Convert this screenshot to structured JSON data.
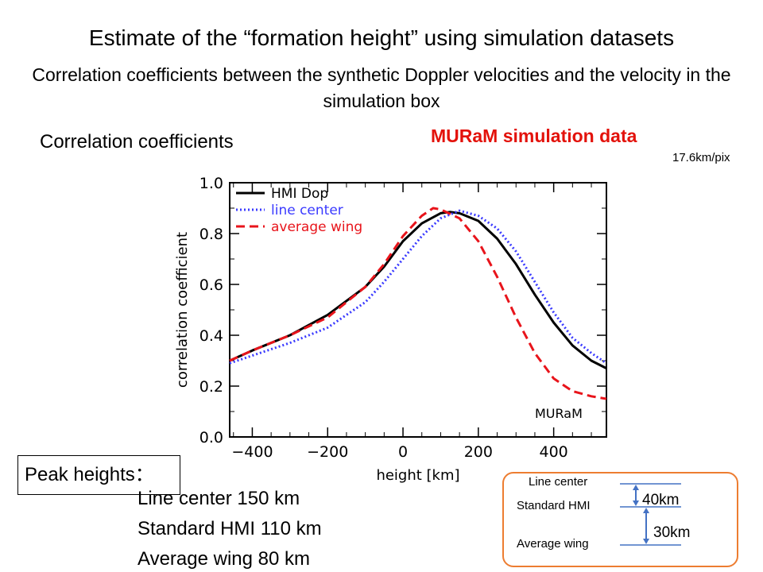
{
  "slide": {
    "title": "Estimate of the “formation height” using simulation datasets",
    "subtitle": "Correlation coefficients between the synthetic Doppler velocities and the velocity in the simulation box",
    "cc_label": "Correlation coefficients",
    "sim_label": "MURaM simulation data",
    "scale_label": "17.6km/pix",
    "peak_heights": {
      "label": "Peak heights：",
      "items": [
        "Line center 150 km",
        "Standard HMI 110 km",
        "Average wing 80 km"
      ]
    },
    "diagram": {
      "line_center": "Line center",
      "standard_hmi": "Standard HMI",
      "average_wing": "Average wing",
      "gap1": "40km",
      "gap2": "30km"
    },
    "colors": {
      "sim_label": "#e3120b",
      "diagram_border": "#ed7d31",
      "arrow": "#4472c4"
    }
  },
  "chart_data": {
    "type": "line",
    "xlabel": "height [km]",
    "ylabel": "correlation coefficient",
    "xlim": [
      -460,
      540
    ],
    "ylim": [
      0.0,
      1.0
    ],
    "xticks": [
      -400,
      -200,
      0,
      200,
      400
    ],
    "xtick_labels": [
      "−400",
      "−200",
      "0",
      "200",
      "400"
    ],
    "yticks": [
      0.0,
      0.2,
      0.4,
      0.6,
      0.8,
      1.0
    ],
    "ytick_labels": [
      "0.0",
      "0.2",
      "0.4",
      "0.6",
      "0.8",
      "1.0"
    ],
    "annotation": "MURaM",
    "legend_position": "top-left",
    "series": [
      {
        "name": "HMI Dop",
        "color": "#000000",
        "dash": "solid",
        "x": [
          -460,
          -400,
          -300,
          -200,
          -100,
          -50,
          0,
          50,
          100,
          125,
          150,
          200,
          250,
          300,
          350,
          400,
          450,
          500,
          540
        ],
        "y": [
          0.3,
          0.34,
          0.4,
          0.48,
          0.59,
          0.67,
          0.77,
          0.84,
          0.88,
          0.885,
          0.88,
          0.85,
          0.78,
          0.68,
          0.56,
          0.45,
          0.36,
          0.3,
          0.27
        ]
      },
      {
        "name": "line center",
        "color": "#3a3aff",
        "dash": "dotted",
        "x": [
          -460,
          -400,
          -300,
          -200,
          -100,
          -50,
          0,
          50,
          100,
          150,
          200,
          250,
          300,
          350,
          400,
          450,
          500,
          540
        ],
        "y": [
          0.29,
          0.32,
          0.37,
          0.43,
          0.53,
          0.61,
          0.7,
          0.79,
          0.86,
          0.89,
          0.87,
          0.82,
          0.73,
          0.61,
          0.49,
          0.39,
          0.33,
          0.29
        ]
      },
      {
        "name": "average wing",
        "color": "#e8141b",
        "dash": "dashed",
        "x": [
          -460,
          -400,
          -300,
          -200,
          -100,
          -50,
          0,
          50,
          80,
          100,
          150,
          200,
          250,
          300,
          350,
          400,
          450,
          500,
          540
        ],
        "y": [
          0.3,
          0.34,
          0.4,
          0.47,
          0.59,
          0.68,
          0.79,
          0.87,
          0.9,
          0.895,
          0.86,
          0.77,
          0.63,
          0.47,
          0.33,
          0.23,
          0.18,
          0.16,
          0.15
        ]
      }
    ]
  }
}
